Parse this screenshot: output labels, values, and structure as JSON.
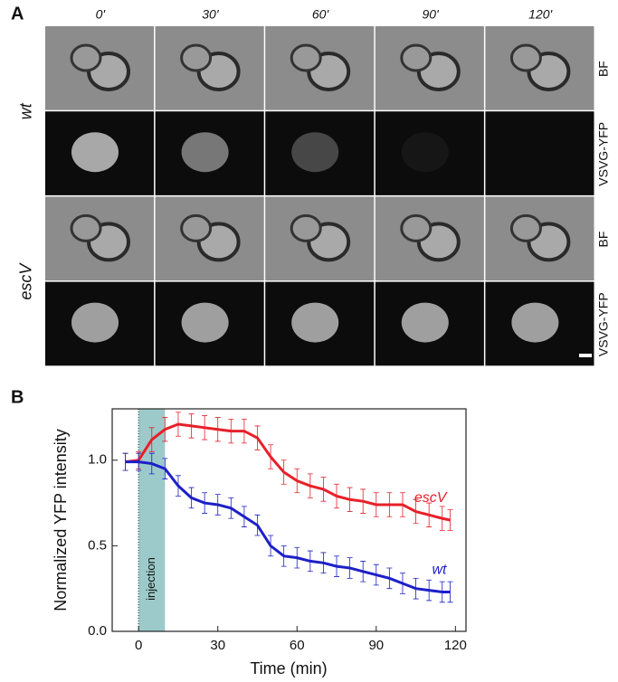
{
  "panel_a": {
    "label": "A",
    "times": [
      "0'",
      "30'",
      "60'",
      "90'",
      "120'"
    ],
    "rows": [
      "BF",
      "VSVG-YFP",
      "BF",
      "VSVG-YFP"
    ],
    "groups": [
      "wt",
      "escV"
    ]
  },
  "chart_data": {
    "type": "line",
    "panel_label": "B",
    "x_label": "Time (min)",
    "y_label": "Normalized YFP intensity",
    "annotation": "injection",
    "shade": [
      0,
      10
    ],
    "shade_color": "#9ccaca",
    "x": [
      -5,
      0,
      5,
      10,
      15,
      20,
      25,
      30,
      35,
      40,
      45,
      50,
      55,
      60,
      65,
      70,
      75,
      80,
      85,
      90,
      95,
      100,
      105,
      110,
      115,
      118
    ],
    "series": [
      {
        "name": "escV",
        "color": "#e8202a",
        "values": [
          0.99,
          1.0,
          1.12,
          1.18,
          1.21,
          1.2,
          1.19,
          1.18,
          1.17,
          1.17,
          1.13,
          1.02,
          0.93,
          0.88,
          0.85,
          0.83,
          0.79,
          0.77,
          0.76,
          0.74,
          0.74,
          0.74,
          0.7,
          0.68,
          0.66,
          0.65
        ],
        "errors": [
          0.05,
          0.05,
          0.07,
          0.07,
          0.07,
          0.07,
          0.07,
          0.07,
          0.07,
          0.07,
          0.07,
          0.07,
          0.07,
          0.07,
          0.07,
          0.07,
          0.07,
          0.07,
          0.07,
          0.07,
          0.07,
          0.07,
          0.07,
          0.07,
          0.07,
          0.06
        ]
      },
      {
        "name": "wt",
        "color": "#1d1fc8",
        "values": [
          0.99,
          0.99,
          0.98,
          0.95,
          0.85,
          0.78,
          0.75,
          0.74,
          0.72,
          0.67,
          0.62,
          0.5,
          0.44,
          0.43,
          0.41,
          0.4,
          0.38,
          0.37,
          0.35,
          0.33,
          0.31,
          0.28,
          0.25,
          0.24,
          0.23,
          0.23
        ],
        "errors": [
          0.05,
          0.05,
          0.06,
          0.06,
          0.06,
          0.06,
          0.06,
          0.06,
          0.06,
          0.06,
          0.06,
          0.06,
          0.06,
          0.06,
          0.06,
          0.06,
          0.06,
          0.06,
          0.06,
          0.06,
          0.06,
          0.06,
          0.06,
          0.06,
          0.06,
          0.06
        ]
      }
    ],
    "xlim": [
      -10,
      124
    ],
    "ylim": [
      0,
      1.3
    ],
    "xticks": [
      0,
      30,
      60,
      90,
      120
    ],
    "yticks": [
      {
        "value": 0,
        "label": "0.0"
      },
      0.5,
      {
        "value": 1,
        "label": "1.0"
      }
    ]
  }
}
